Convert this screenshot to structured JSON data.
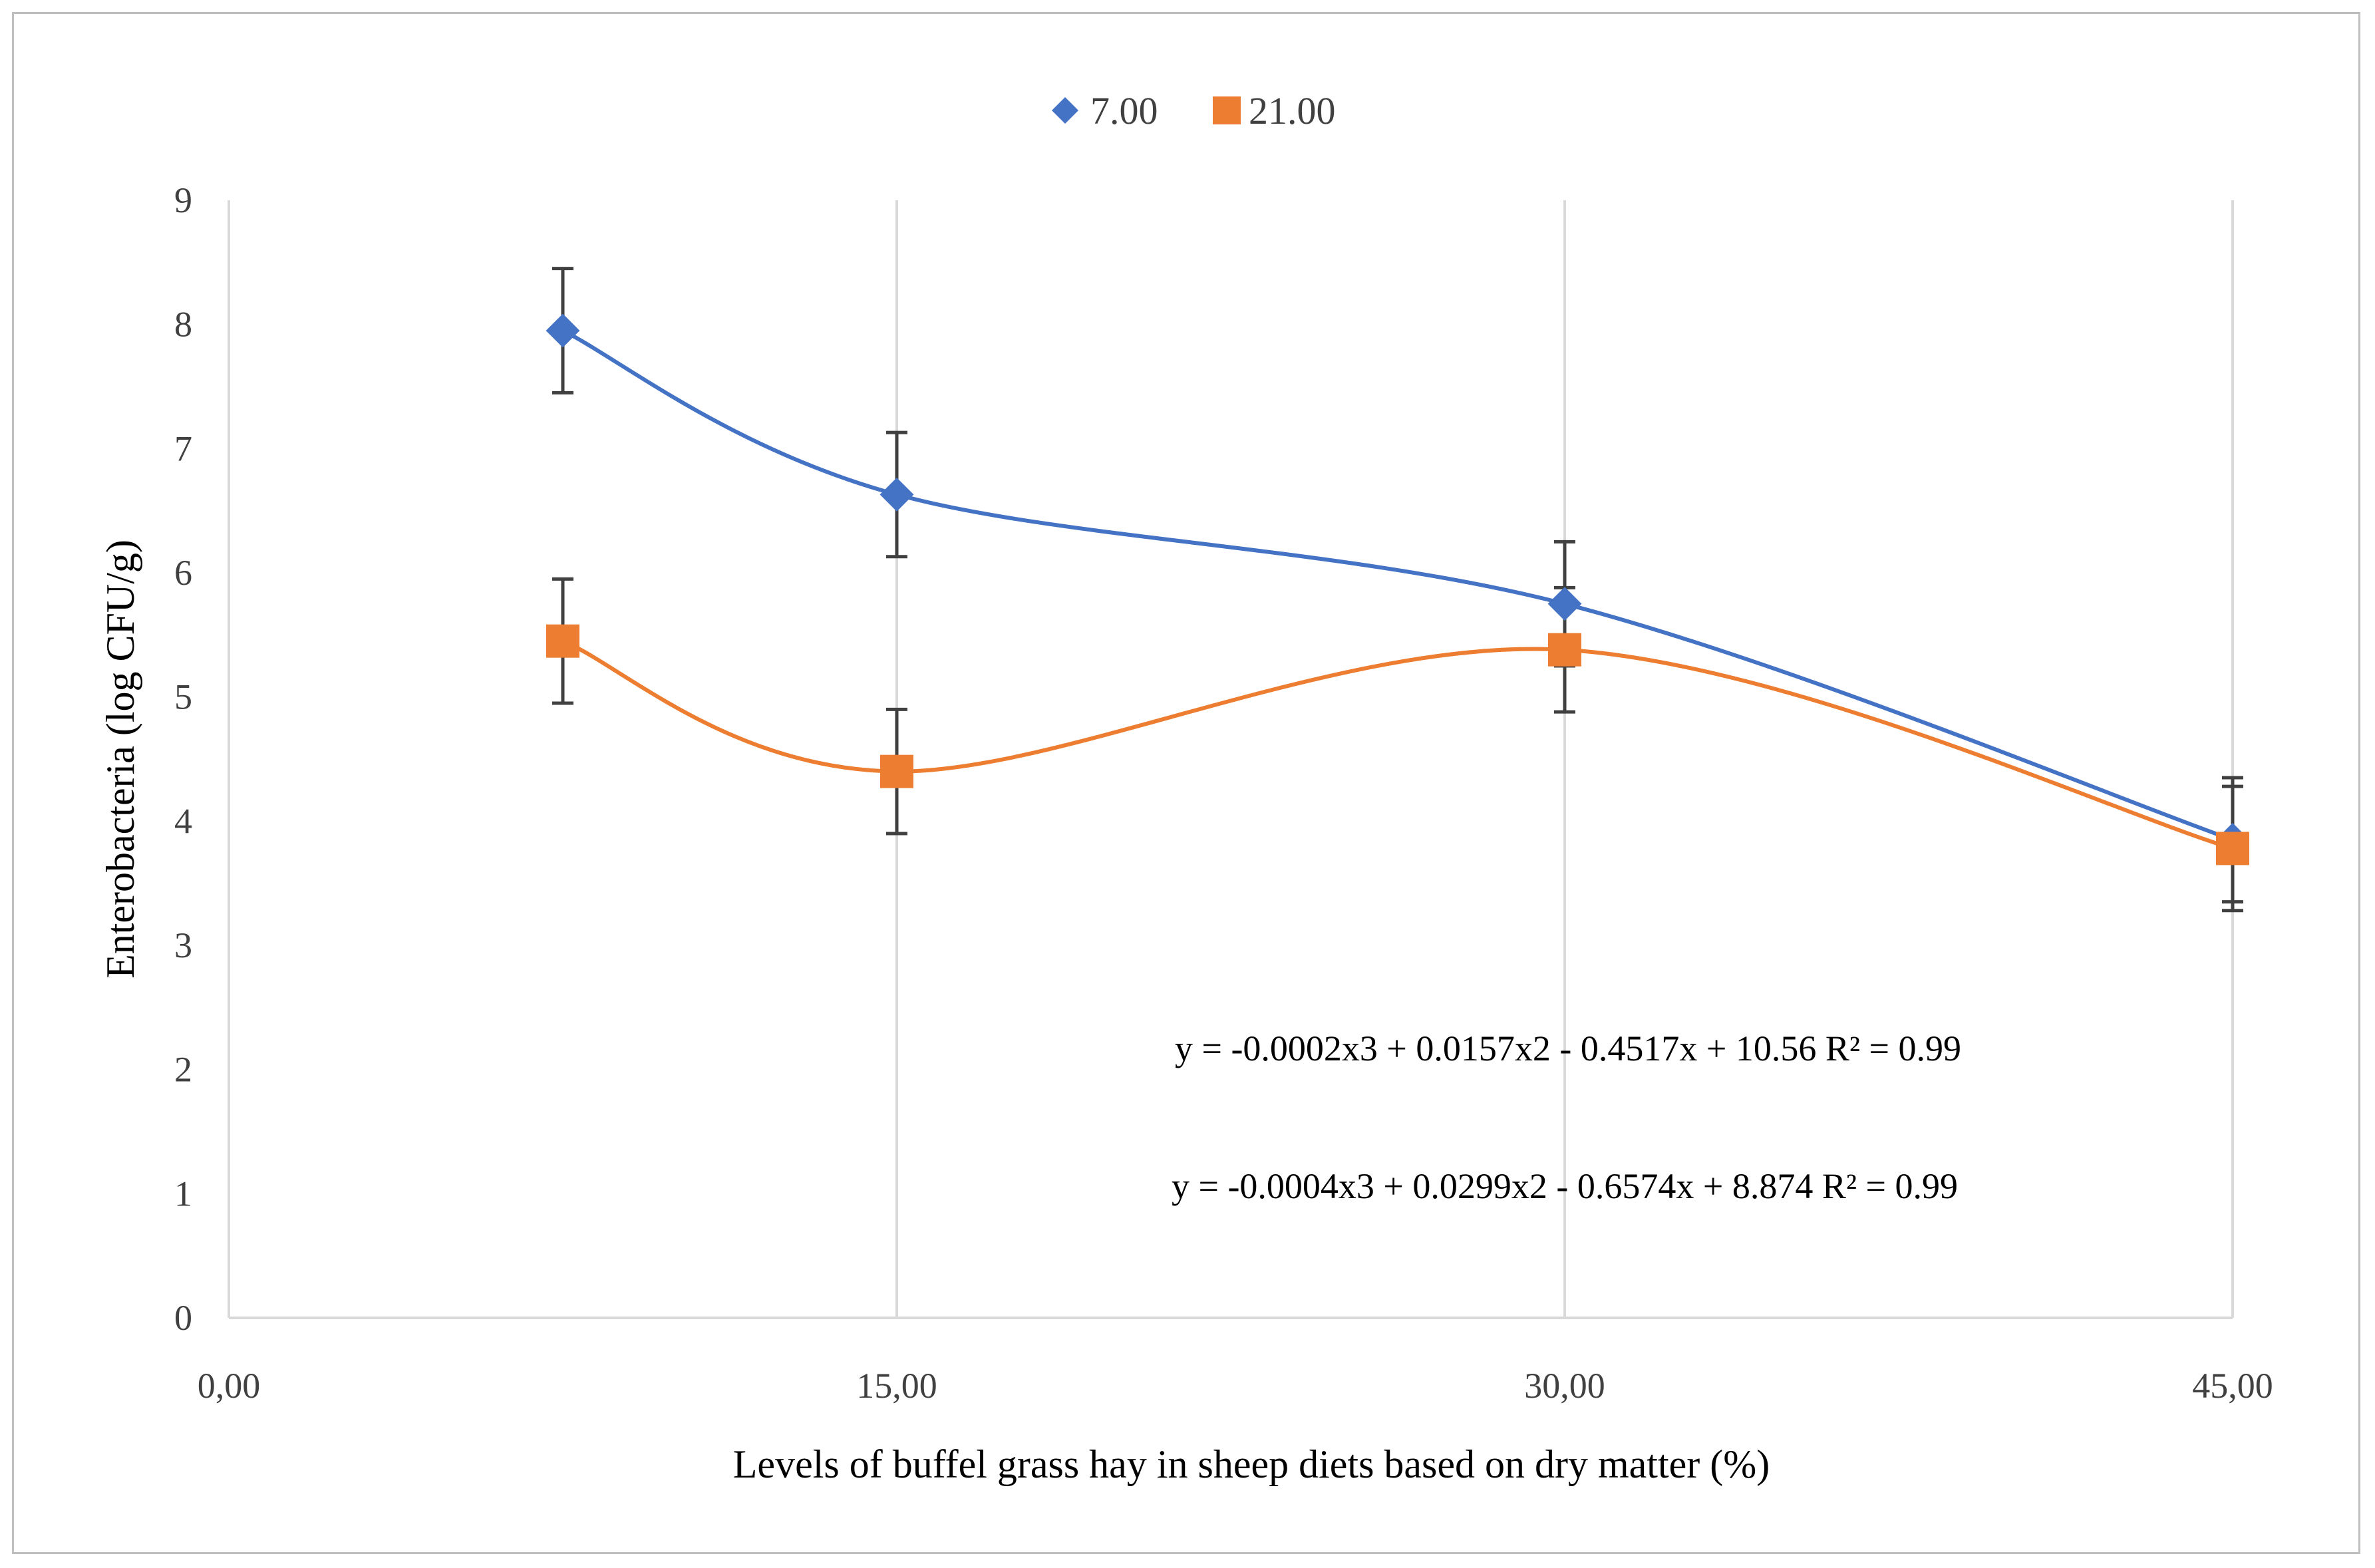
{
  "chart_data": {
    "type": "scatter",
    "title": "",
    "xlabel": "Levels of buffel grass hay in sheep diets based on dry matter (%)",
    "ylabel": "Enterobacteria (log CFU/g)",
    "xlim": [
      0,
      45
    ],
    "ylim": [
      0,
      9
    ],
    "x_ticks": [
      0,
      15,
      30,
      45
    ],
    "x_tick_labels": [
      "0,00",
      "15,00",
      "30,00",
      "45,00"
    ],
    "y_ticks": [
      0,
      1,
      2,
      3,
      4,
      5,
      6,
      7,
      8,
      9
    ],
    "y_tick_labels": [
      "0",
      "1",
      "2",
      "3",
      "4",
      "5",
      "6",
      "7",
      "8",
      "9"
    ],
    "grid": "vertical",
    "legend_position": "top-center",
    "series": [
      {
        "name": "7.00",
        "color": "#4472c4",
        "marker": "diamond",
        "x": [
          7.5,
          15,
          30,
          45
        ],
        "y": [
          7.95,
          6.63,
          5.75,
          3.85
        ],
        "error": [
          0.5,
          0.5,
          0.5,
          0.5
        ],
        "trendline": [
          -0.0002,
          0.0157,
          -0.4517,
          10.56
        ],
        "fitted_curve": [
          [
            7.5,
            7.95
          ],
          [
            15,
            6.63
          ],
          [
            30,
            5.75
          ],
          [
            45,
            3.85
          ]
        ]
      },
      {
        "name": "21.00",
        "color": "#ed7d31",
        "marker": "square",
        "x": [
          7.5,
          15,
          30,
          45
        ],
        "y": [
          5.45,
          4.4,
          5.38,
          3.78
        ],
        "error": [
          0.5,
          0.5,
          0.5,
          0.5
        ],
        "trendline": [
          -0.0004,
          0.0299,
          -0.6574,
          8.874
        ],
        "fitted_curve": [
          [
            7.5,
            5.45
          ],
          [
            15,
            4.4
          ],
          [
            30,
            5.38
          ],
          [
            45,
            3.78
          ]
        ]
      }
    ],
    "annotations": [
      "y = -0.0002x3 + 0.0157x2 - 0.4517x + 10.56 R² = 0.99",
      "y = -0.0004x3 + 0.0299x2 - 0.6574x + 8.874 R² = 0.99"
    ]
  }
}
